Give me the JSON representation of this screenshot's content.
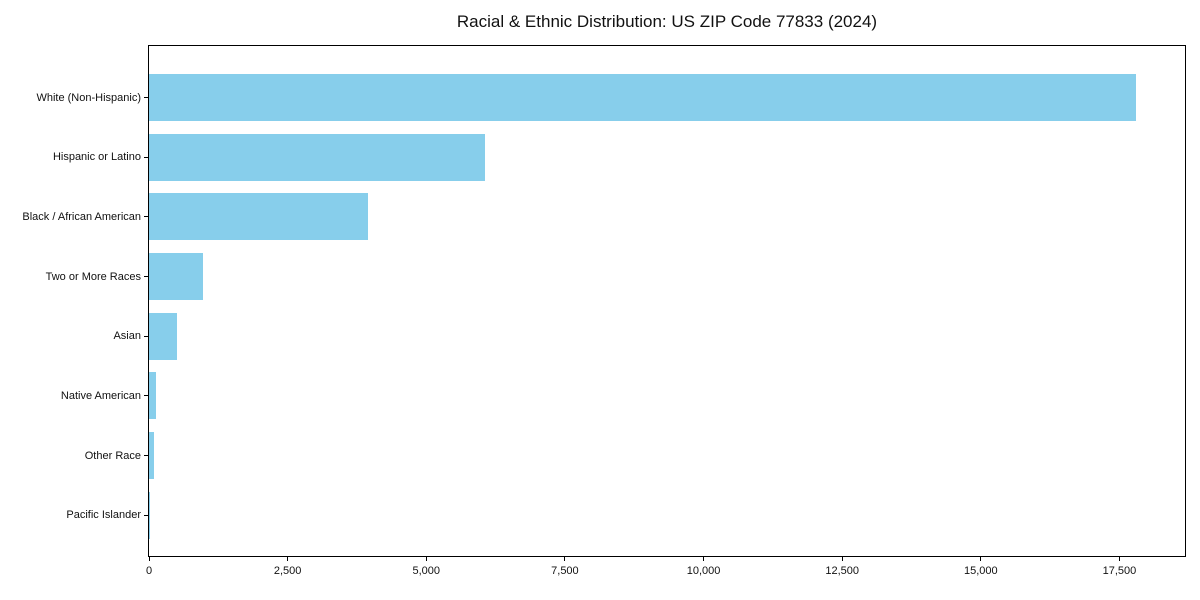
{
  "chart_data": {
    "type": "bar",
    "orientation": "horizontal",
    "title": "Racial & Ethnic Distribution: US ZIP Code 77833 (2024)",
    "categories": [
      "White (Non-Hispanic)",
      "Hispanic or Latino",
      "Black / African American",
      "Two or More Races",
      "Asian",
      "Native American",
      "Other Race",
      "Pacific Islander"
    ],
    "values": [
      17800,
      6050,
      3950,
      975,
      500,
      130,
      90,
      10
    ],
    "xlabel": "",
    "ylabel": "",
    "x_tick_values": [
      0,
      2500,
      5000,
      7500,
      10000,
      12500,
      15000,
      17500
    ],
    "x_tick_labels": [
      "0",
      "2,500",
      "5,000",
      "7,500",
      "10,000",
      "12,500",
      "15,000",
      "17,500"
    ],
    "xlim": [
      0,
      18700
    ],
    "grid": false,
    "legend": false,
    "bar_color": "#87CEEB",
    "background_color": "#ffffff",
    "spine_color": "#000000"
  }
}
